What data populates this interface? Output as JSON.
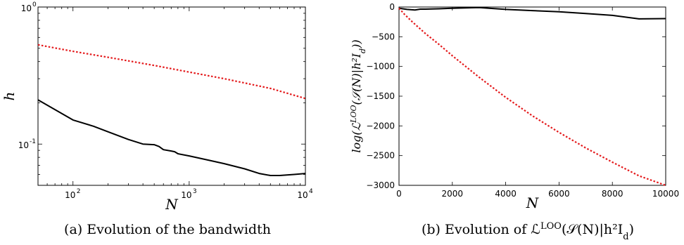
{
  "figure": {
    "captions": [
      "(a) Evolution of the bandwidth",
      "(b) Evolution of ℒ<sup>LOO</sup>(𝒮(N)|h²I<sub>d</sub>)"
    ]
  },
  "chart_data": [
    {
      "type": "line",
      "title": "",
      "xlabel": "N",
      "ylabel": "h",
      "xscale": "log",
      "yscale": "log",
      "xlim": [
        50,
        10000
      ],
      "ylim": [
        0.05,
        1
      ],
      "xticks": [
        100,
        1000,
        10000
      ],
      "xtick_labels": [
        [
          "10",
          "2"
        ],
        [
          "10",
          "3"
        ],
        [
          "10",
          "4"
        ]
      ],
      "yticks": [
        0.1,
        1
      ],
      "ytick_labels": [
        [
          "10",
          "-1"
        ],
        [
          "10",
          "0"
        ]
      ],
      "grid": false,
      "series": [
        {
          "color": "#e41a1c",
          "style": "dotted",
          "x": [
            50,
            100,
            200,
            500,
            1000,
            2000,
            5000,
            10000
          ],
          "y": [
            0.53,
            0.475,
            0.43,
            0.375,
            0.335,
            0.3,
            0.255,
            0.215
          ]
        },
        {
          "color": "#000000",
          "style": "solid",
          "x": [
            50,
            100,
            150,
            200,
            300,
            400,
            500,
            550,
            600,
            700,
            750,
            800,
            1000,
            1500,
            2000,
            3000,
            4000,
            5000,
            6000,
            8000,
            10000
          ],
          "y": [
            0.21,
            0.15,
            0.135,
            0.123,
            0.108,
            0.1,
            0.099,
            0.096,
            0.091,
            0.089,
            0.088,
            0.085,
            0.082,
            0.076,
            0.072,
            0.066,
            0.061,
            0.059,
            0.059,
            0.06,
            0.061
          ]
        }
      ]
    },
    {
      "type": "line",
      "title": "",
      "xlabel": "N",
      "ylabel": "log(ℒ<sup>LOO</sup>(𝒮(N)|h²I<sub>d</sub>))",
      "xlim": [
        0,
        10000
      ],
      "ylim": [
        -3000,
        0
      ],
      "xticks": [
        0,
        2000,
        4000,
        6000,
        8000,
        10000
      ],
      "xtick_labels": [
        "0",
        "2000",
        "4000",
        "6000",
        "8000",
        "10000"
      ],
      "yticks": [
        0,
        -500,
        -1000,
        -1500,
        -2000,
        -2500,
        -3000
      ],
      "ytick_labels": [
        "0",
        "−500",
        "−1000",
        "−1500",
        "−2000",
        "−2500",
        "−3000"
      ],
      "grid": false,
      "series": [
        {
          "color": "#000000",
          "style": "solid",
          "x": [
            0,
            300,
            600,
            800,
            1000,
            1500,
            2000,
            3000,
            4000,
            5000,
            6000,
            7000,
            8000,
            9000,
            10000
          ],
          "y": [
            -20,
            -40,
            -50,
            -35,
            -35,
            -30,
            -20,
            -10,
            -40,
            -60,
            -80,
            -110,
            -140,
            -200,
            -195
          ]
        },
        {
          "color": "#e41a1c",
          "style": "dotted",
          "x": [
            0,
            200,
            500,
            1000,
            1500,
            2000,
            3000,
            4000,
            5000,
            6000,
            7000,
            8000,
            9000,
            10000
          ],
          "y": [
            -20,
            -120,
            -250,
            -450,
            -630,
            -820,
            -1180,
            -1520,
            -1830,
            -2110,
            -2370,
            -2610,
            -2840,
            -3060
          ]
        }
      ]
    }
  ]
}
